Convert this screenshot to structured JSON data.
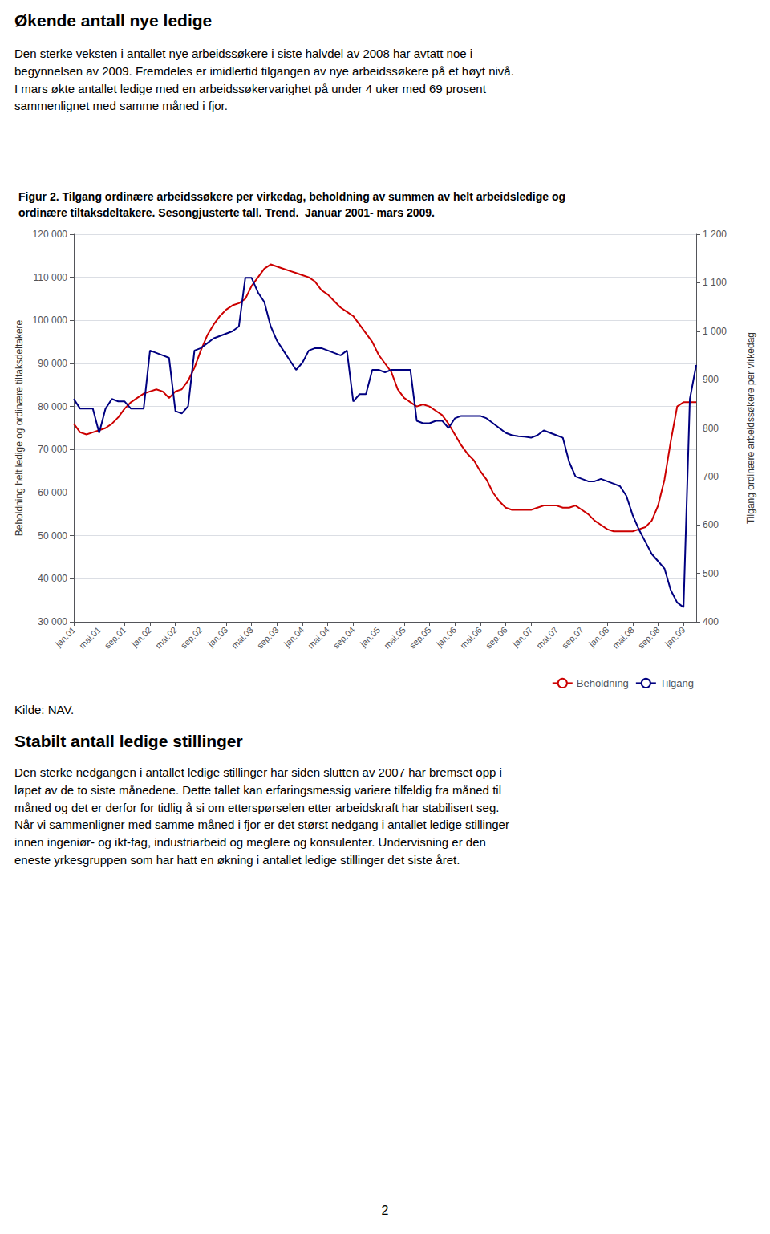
{
  "page": {
    "heading": "Økende antall nye ledige",
    "text": "Den sterke veksten i antallet nye arbeidssøkere i siste halvdel av 2008 har avtatt noe i\nbegynnelsen av 2009. Fremdeles er imidlertid tilgangen av nye arbeidssøkere på et høyt nivå.\nI mars økte antallet ledige med en arbeidssøkervarighet på under 4 uker med 69 prosent\nsammenlignet med samme måned i fjor.",
    "source": "Kilde: NAV.",
    "heading2": "Stabilt antall ledige stillinger",
    "text2": "Den sterke nedgangen i antallet ledige stillinger har siden slutten av 2007 har bremset opp i\nløpet av de to siste månedene. Dette tallet kan erfaringsmessig variere tilfeldig fra måned til\nmåned og det er derfor for tidlig å si om etterspørselen etter arbeidskraft har stabilisert seg.\nNår vi sammenligner med samme måned i fjor er det størst nedgang i antallet ledige stillinger\ninnen ingeniør- og ikt-fag, industriarbeid og meglere og konsulenter. Undervisning er den\neneste yrkesgruppen som har hatt en økning i antallet ledige stillinger det siste året.",
    "page_number": "2"
  },
  "chart_data": {
    "type": "line",
    "title": "Figur 2. Tilgang ordinære arbeidssøkere per virkedag, beholdning av summen av helt arbeidsledige og\nordinære tiltaksdeltakere. Sesongjusterte tall. Trend.  Januar 2001- mars 2009.",
    "ylabel": "Beholdning helt ledige og ordinære tiltaksdeltakere",
    "y2label": "Tilgang ordinære arbeidssøkere per virkedag",
    "categories": [
      "jan.01",
      null,
      null,
      null,
      "mai.01",
      null,
      null,
      null,
      "sep.01",
      null,
      null,
      null,
      "jan.02",
      null,
      null,
      null,
      "mai.02",
      null,
      null,
      null,
      "sep.02",
      null,
      null,
      null,
      "jan.03",
      null,
      null,
      null,
      "mai.03",
      null,
      null,
      null,
      "sep.03",
      null,
      null,
      null,
      "jan.04",
      null,
      null,
      null,
      "mai.04",
      null,
      null,
      null,
      "sep.04",
      null,
      null,
      null,
      "jan.05",
      null,
      null,
      null,
      "mai.05",
      null,
      null,
      null,
      "sep.05",
      null,
      null,
      null,
      "jan.06",
      null,
      null,
      null,
      "mai.06",
      null,
      null,
      null,
      "sep.06",
      null,
      null,
      null,
      "jan.07",
      null,
      null,
      null,
      "mai.07",
      null,
      null,
      null,
      "sep.07",
      null,
      null,
      null,
      "jan.08",
      null,
      null,
      null,
      "mai.08",
      null,
      null,
      null,
      "sep.08",
      null,
      null,
      null,
      "jan.09",
      null,
      null
    ],
    "series": [
      {
        "name": "Beholdning",
        "color": "#cc0000",
        "values": [
          76000,
          74000,
          73500,
          74000,
          74500,
          75000,
          76000,
          77500,
          79500,
          81000,
          82000,
          83000,
          83500,
          84000,
          83500,
          82000,
          83500,
          84000,
          86000,
          89000,
          93000,
          96500,
          99000,
          101000,
          102500,
          103500,
          104000,
          105000,
          108000,
          110000,
          112000,
          113000,
          112500,
          112000,
          111500,
          111000,
          110500,
          110000,
          109000,
          107000,
          106000,
          104500,
          103000,
          102000,
          101000,
          99000,
          97000,
          95000,
          92000,
          90000,
          88000,
          84000,
          82000,
          81000,
          80000,
          80500,
          80000,
          79000,
          78000,
          76000,
          73500,
          71000,
          69000,
          67500,
          65000,
          63000,
          60000,
          58000,
          56500,
          56000,
          56000,
          56000,
          56000,
          56500,
          57000,
          57000,
          57000,
          56500,
          56500,
          57000,
          56000,
          55000,
          53500,
          52500,
          51500,
          51000,
          51000,
          51000,
          51000,
          51500,
          52000,
          53500,
          57000,
          63000,
          72000,
          80000,
          81000,
          81000,
          81000
        ]
      },
      {
        "name": "Tilgang",
        "color": "#000080",
        "axis": "y2",
        "values": [
          860,
          840,
          840,
          840,
          790,
          840,
          860,
          855,
          855,
          840,
          840,
          840,
          960,
          955,
          950,
          945,
          835,
          830,
          845,
          960,
          965,
          975,
          985,
          990,
          995,
          1000,
          1010,
          1110,
          1110,
          1080,
          1060,
          1010,
          980,
          960,
          940,
          920,
          935,
          960,
          965,
          965,
          960,
          955,
          950,
          960,
          855,
          870,
          870,
          920,
          920,
          915,
          920,
          920,
          920,
          920,
          815,
          810,
          810,
          815,
          815,
          800,
          820,
          825,
          825,
          825,
          825,
          820,
          810,
          800,
          790,
          785,
          783,
          782,
          780,
          785,
          795,
          790,
          785,
          780,
          730,
          700,
          695,
          690,
          690,
          695,
          690,
          685,
          680,
          660,
          620,
          590,
          565,
          540,
          525,
          510,
          465,
          440,
          430,
          860,
          930
        ]
      }
    ],
    "ylim": [
      30000,
      120000
    ],
    "yticks": [
      {
        "value": 30000,
        "label": "30 000"
      },
      {
        "value": 40000,
        "label": "40 000"
      },
      {
        "value": 50000,
        "label": "50 000"
      },
      {
        "value": 60000,
        "label": "60 000"
      },
      {
        "value": 70000,
        "label": "70 000"
      },
      {
        "value": 80000,
        "label": "80 000"
      },
      {
        "value": 90000,
        "label": "90 000"
      },
      {
        "value": 100000,
        "label": "100 000"
      },
      {
        "value": 110000,
        "label": "110 000"
      },
      {
        "value": 120000,
        "label": "120 000"
      }
    ],
    "y2lim": [
      400,
      1200
    ],
    "y2ticks": [
      400,
      500,
      600,
      700,
      800,
      900,
      {
        "value": 1000,
        "label": "1 000"
      },
      {
        "value": 1100,
        "label": "1 100"
      },
      {
        "value": 1200,
        "label": "1 200"
      }
    ],
    "grid": true,
    "legend": "lower right"
  }
}
